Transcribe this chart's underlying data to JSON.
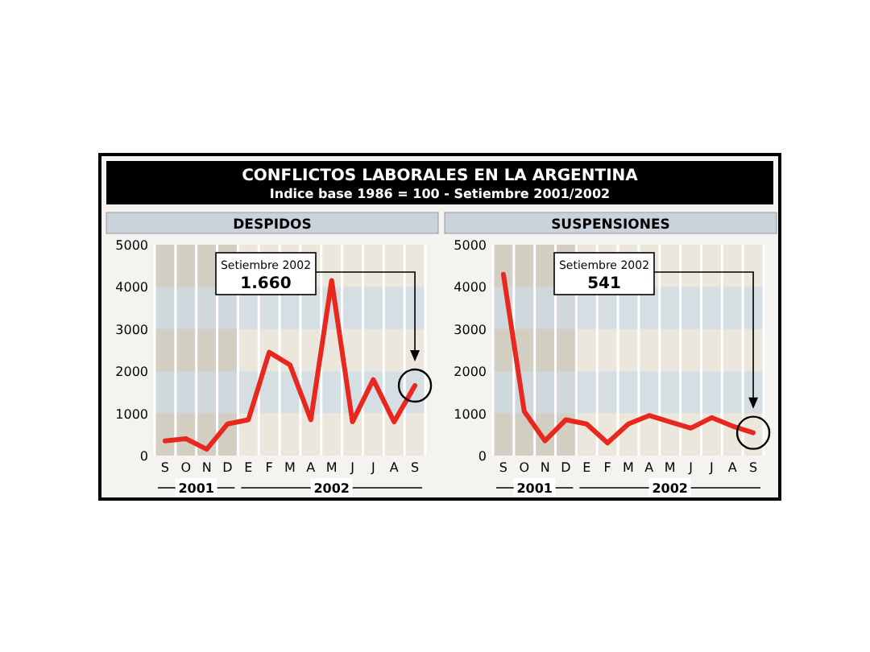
{
  "chart_data": [
    {
      "type": "other",
      "title": "CONFLICTOS LABORALES EN LA ARGENTINA",
      "subtitle": "Indice base 1986 = 100 - Setiembre 2001/2002"
    },
    {
      "type": "line",
      "title": "DESPIDOS",
      "categories": [
        "S",
        "O",
        "N",
        "D",
        "E",
        "F",
        "M",
        "A",
        "M",
        "J",
        "J",
        "A",
        "S"
      ],
      "series": [
        {
          "color": "#e8281e",
          "values": [
            350,
            400,
            150,
            750,
            850,
            2450,
            2150,
            850,
            4150,
            800,
            1800,
            800,
            1660
          ]
        }
      ],
      "ylim": [
        0,
        5000
      ],
      "yticks": [
        0,
        1000,
        2000,
        3000,
        4000,
        5000
      ],
      "grid": "x",
      "marker": "none",
      "line_style": "solid",
      "bands": [
        {
          "axis": "y",
          "from": 1000,
          "to": 2000,
          "color": "#cddbe6"
        },
        {
          "axis": "y",
          "from": 3000,
          "to": 4000,
          "color": "#cddbe6"
        }
      ],
      "annotations": [
        "Setiembre 2002",
        "1.660",
        "2001",
        "2002"
      ]
    },
    {
      "type": "line",
      "title": "SUSPENSIONES",
      "categories": [
        "S",
        "O",
        "N",
        "D",
        "E",
        "F",
        "M",
        "A",
        "M",
        "J",
        "J",
        "A",
        "S"
      ],
      "series": [
        {
          "color": "#e8281e",
          "values": [
            4300,
            1050,
            350,
            850,
            750,
            300,
            750,
            950,
            800,
            650,
            900,
            700,
            541
          ]
        }
      ],
      "ylim": [
        0,
        5000
      ],
      "yticks": [
        0,
        1000,
        2000,
        3000,
        4000,
        5000
      ],
      "grid": "x",
      "marker": "none",
      "line_style": "solid",
      "bands": [
        {
          "axis": "y",
          "from": 1000,
          "to": 2000,
          "color": "#cddbe6"
        },
        {
          "axis": "y",
          "from": 3000,
          "to": 4000,
          "color": "#cddbe6"
        }
      ],
      "annotations": [
        "Setiembre 2002",
        "541",
        "2001",
        "2002"
      ]
    }
  ]
}
